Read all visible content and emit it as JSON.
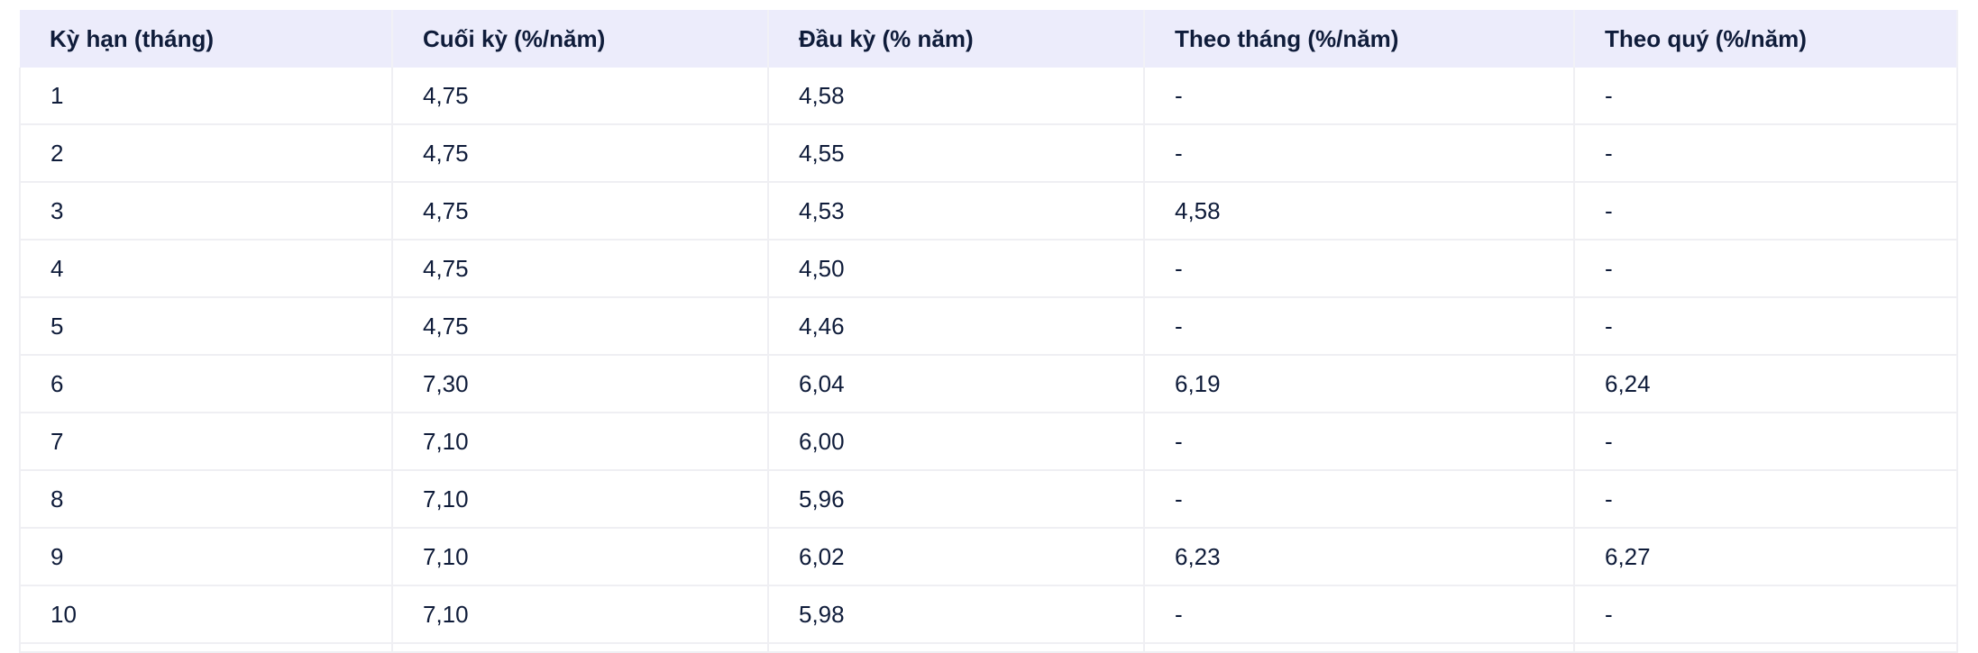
{
  "table": {
    "headers": [
      "Kỳ hạn (tháng)",
      "Cuối kỳ (%/năm)",
      "Đầu kỳ (% năm)",
      "Theo tháng (%/năm)",
      "Theo quý (%/năm)"
    ],
    "rows": [
      [
        "1",
        "4,75",
        "4,58",
        "-",
        "-"
      ],
      [
        "2",
        "4,75",
        "4,55",
        "-",
        "-"
      ],
      [
        "3",
        "4,75",
        "4,53",
        "4,58",
        "-"
      ],
      [
        "4",
        "4,75",
        "4,50",
        "-",
        "-"
      ],
      [
        "5",
        "4,75",
        "4,46",
        "-",
        "-"
      ],
      [
        "6",
        "7,30",
        "6,04",
        "6,19",
        "6,24"
      ],
      [
        "7",
        "7,10",
        "6,00",
        "-",
        "-"
      ],
      [
        "8",
        "7,10",
        "5,96",
        "-",
        "-"
      ],
      [
        "9",
        "7,10",
        "6,02",
        "6,23",
        "6,27"
      ],
      [
        "10",
        "7,10",
        "5,98",
        "-",
        "-"
      ]
    ]
  }
}
